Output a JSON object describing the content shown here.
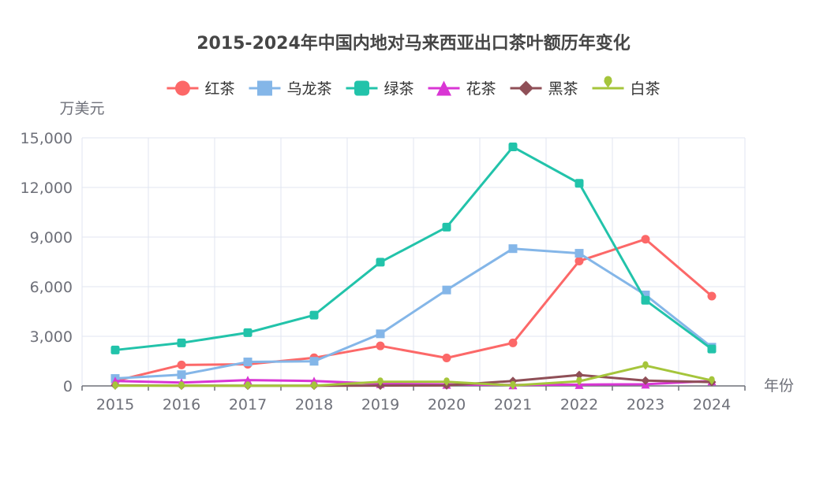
{
  "chart_data": {
    "type": "line",
    "title": "2015-2024年中国内地对马来西亚出口茶叶额历年变化",
    "y_unit_label": "万美元",
    "xlabel": "年份",
    "categories": [
      "2015",
      "2016",
      "2017",
      "2018",
      "2019",
      "2020",
      "2021",
      "2022",
      "2023",
      "2024"
    ],
    "ylim": [
      0,
      15000
    ],
    "yticks": [
      0,
      3000,
      6000,
      9000,
      12000,
      15000
    ],
    "ytick_labels": [
      "0",
      "3,000",
      "6,000",
      "9,000",
      "12,000",
      "15,000"
    ],
    "grid": true,
    "legend_position": "top-center",
    "series": [
      {
        "name": "红茶",
        "color": "#fc6868",
        "marker": "circle",
        "values": [
          300,
          1270,
          1310,
          1700,
          2420,
          1690,
          2600,
          7550,
          8870,
          5430
        ]
      },
      {
        "name": "乌龙茶",
        "color": "#84b6e8",
        "marker": "square",
        "values": [
          450,
          680,
          1450,
          1490,
          3150,
          5800,
          8300,
          8020,
          5500,
          2340
        ]
      },
      {
        "name": "绿茶",
        "color": "#22c3aa",
        "marker": "rounded-square",
        "values": [
          2170,
          2600,
          3220,
          4280,
          7480,
          9600,
          14450,
          12250,
          5180,
          2230
        ]
      },
      {
        "name": "花茶",
        "color": "#d936d4",
        "marker": "triangle",
        "values": [
          300,
          200,
          350,
          300,
          130,
          90,
          60,
          80,
          100,
          300
        ]
      },
      {
        "name": "黑茶",
        "color": "#8f4f57",
        "marker": "diamond",
        "values": [
          30,
          20,
          10,
          10,
          20,
          30,
          300,
          660,
          320,
          230
        ]
      },
      {
        "name": "白茶",
        "color": "#a5c53b",
        "marker": "pin",
        "values": [
          10,
          10,
          10,
          10,
          250,
          250,
          30,
          280,
          1230,
          330
        ]
      }
    ]
  }
}
